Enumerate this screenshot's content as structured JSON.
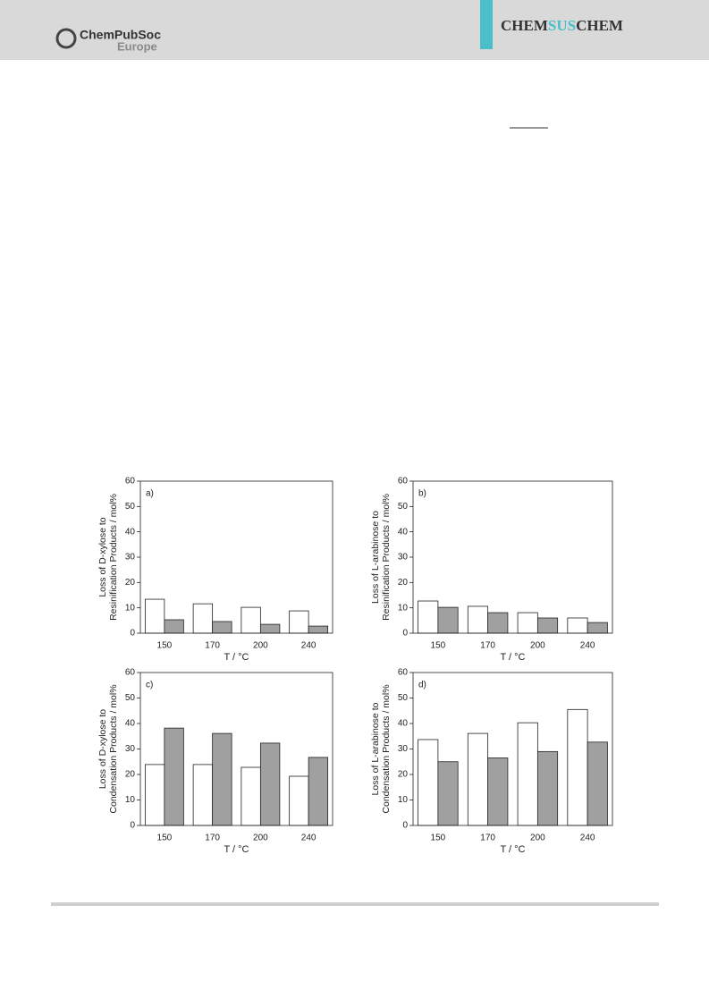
{
  "header": {
    "society": "ChemPubSoc",
    "region": "Europe",
    "journal": [
      "CHEM",
      "SUS",
      "CHEM"
    ]
  },
  "chart_data": [
    {
      "type": "bar",
      "panel": "a)",
      "ylabel": [
        "Loss of D-xylose to",
        "Resinification Products / mol%"
      ],
      "xlabel": "T / °C",
      "categories": [
        "150",
        "170",
        "200",
        "240"
      ],
      "series": [
        {
          "color": "#ffffff",
          "values": [
            13.4,
            11.6,
            10.2,
            8.8
          ]
        },
        {
          "color": "#a0a0a0",
          "values": [
            5.3,
            4.6,
            3.5,
            2.8
          ]
        }
      ],
      "ylim": [
        0,
        60
      ],
      "yticks": [
        0,
        10,
        20,
        30,
        40,
        50,
        60
      ]
    },
    {
      "type": "bar",
      "panel": "b)",
      "ylabel": [
        "Loss of L-arabinose to",
        "Resinification Products / mol%"
      ],
      "xlabel": "T / °C",
      "categories": [
        "150",
        "170",
        "200",
        "240"
      ],
      "series": [
        {
          "color": "#ffffff",
          "values": [
            12.7,
            10.6,
            8.1,
            6.0
          ]
        },
        {
          "color": "#a0a0a0",
          "values": [
            10.2,
            8.1,
            6.0,
            4.2
          ]
        }
      ],
      "ylim": [
        0,
        60
      ],
      "yticks": [
        0,
        10,
        20,
        30,
        40,
        50,
        60
      ]
    },
    {
      "type": "bar",
      "panel": "c)",
      "ylabel": [
        "Loss of D-xylose to",
        "Condensation Products / mol%"
      ],
      "xlabel": "T / °C",
      "categories": [
        "150",
        "170",
        "200",
        "240"
      ],
      "series": [
        {
          "color": "#ffffff",
          "values": [
            23.9,
            23.9,
            22.8,
            19.3
          ]
        },
        {
          "color": "#a0a0a0",
          "values": [
            38.2,
            36.1,
            32.3,
            26.7
          ]
        }
      ],
      "ylim": [
        0,
        60
      ],
      "yticks": [
        0,
        10,
        20,
        30,
        40,
        50,
        60
      ]
    },
    {
      "type": "bar",
      "panel": "d)",
      "ylabel": [
        "Loss of L-arabinose to",
        "Condensation Products / mol%"
      ],
      "xlabel": "T / °C",
      "categories": [
        "150",
        "170",
        "200",
        "240"
      ],
      "series": [
        {
          "color": "#ffffff",
          "values": [
            33.7,
            36.1,
            40.3,
            45.5
          ]
        },
        {
          "color": "#a0a0a0",
          "values": [
            25.0,
            26.5,
            29.0,
            32.7
          ]
        }
      ],
      "ylim": [
        0,
        60
      ],
      "yticks": [
        0,
        10,
        20,
        30,
        40,
        50,
        60
      ]
    }
  ]
}
